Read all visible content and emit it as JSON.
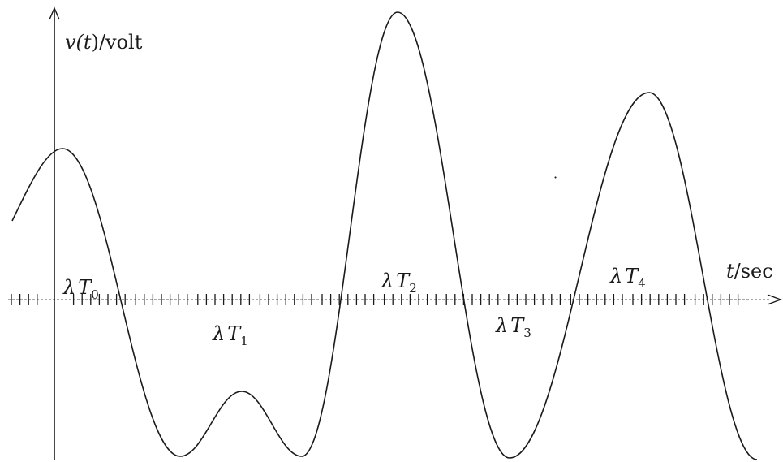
{
  "axes": {
    "y_label": {
      "pre": "v(",
      "var": "t",
      "post": ")/volt"
    },
    "x_label": {
      "var": "t",
      "post": "/sec"
    }
  },
  "interval_labels": [
    {
      "id": "t0",
      "lambda": "λ",
      "T": "T",
      "sub": "0"
    },
    {
      "id": "t1",
      "lambda": "λ",
      "T": "T",
      "sub": "1"
    },
    {
      "id": "t2",
      "lambda": "λ",
      "T": "T",
      "sub": "2"
    },
    {
      "id": "t3",
      "lambda": "λ",
      "T": "T",
      "sub": "3"
    },
    {
      "id": "t4",
      "lambda": "λ",
      "T": "T",
      "sub": "4"
    }
  ],
  "colors": {
    "ink": "#1a1a1a",
    "background": "#ffffff"
  }
}
